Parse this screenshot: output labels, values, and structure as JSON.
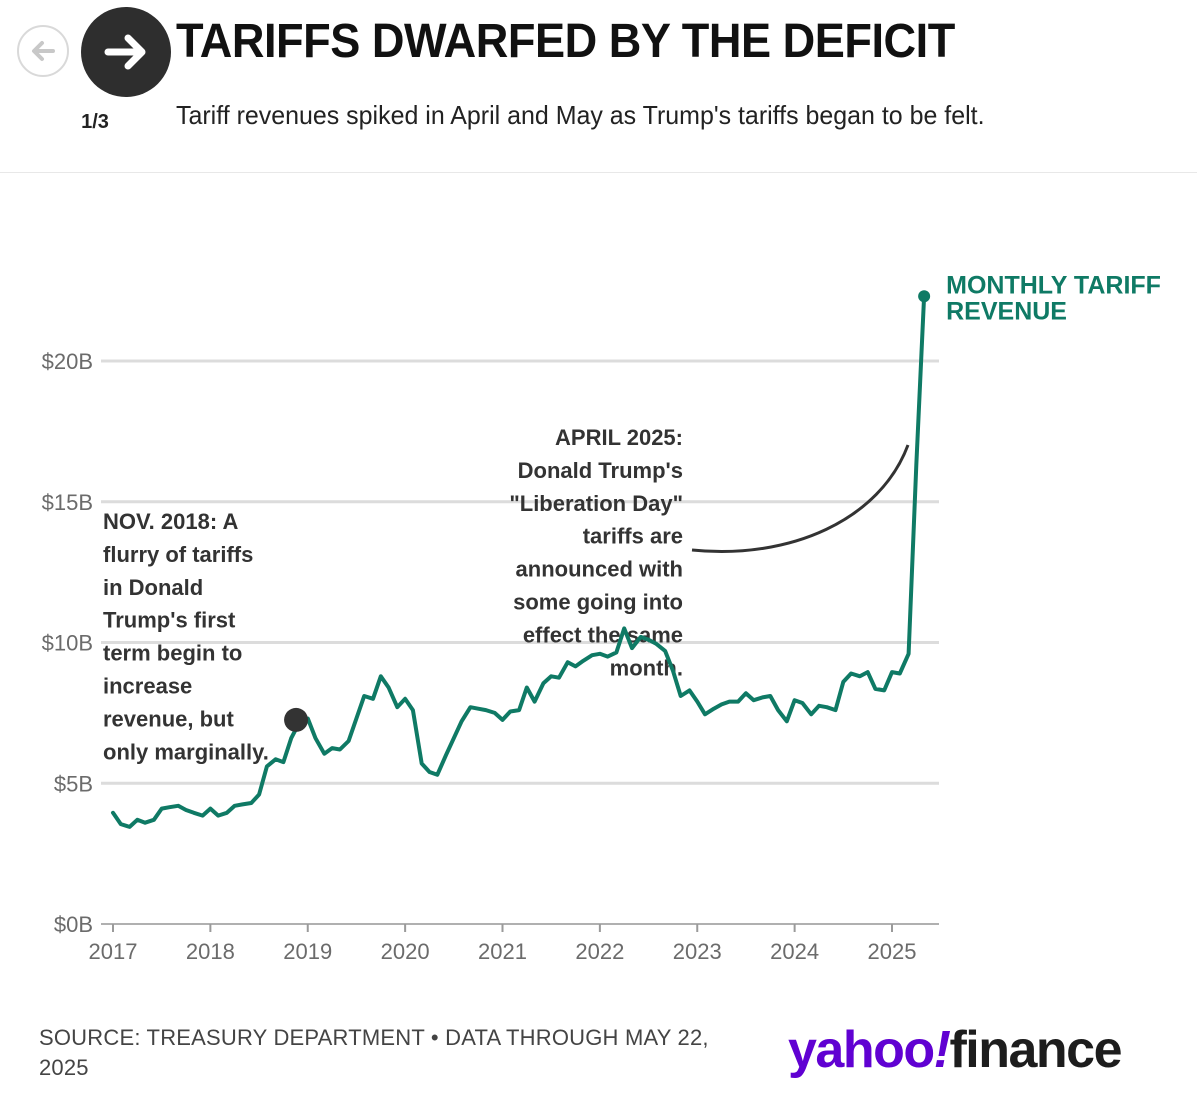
{
  "nav": {
    "page_count": "1/3",
    "prev_icon": "arrow-left-icon",
    "next_icon": "arrow-right-icon"
  },
  "header": {
    "title": "TARIFFS DWARFED BY THE DEFICIT",
    "subtitle": "Tariff revenues spiked in April and May as Trump's tariffs began to be felt."
  },
  "chart_data": {
    "type": "line",
    "series": [
      {
        "name": "MONTHLY TARIFF REVENUE",
        "color": "#0f7a65",
        "points": [
          [
            2017.0,
            3.95
          ],
          [
            2017.08,
            3.55
          ],
          [
            2017.17,
            3.45
          ],
          [
            2017.25,
            3.7
          ],
          [
            2017.33,
            3.6
          ],
          [
            2017.42,
            3.7
          ],
          [
            2017.5,
            4.1
          ],
          [
            2017.58,
            4.15
          ],
          [
            2017.67,
            4.2
          ],
          [
            2017.75,
            4.05
          ],
          [
            2017.83,
            3.95
          ],
          [
            2017.92,
            3.85
          ],
          [
            2018.0,
            4.1
          ],
          [
            2018.08,
            3.85
          ],
          [
            2018.17,
            3.95
          ],
          [
            2018.25,
            4.2
          ],
          [
            2018.33,
            4.25
          ],
          [
            2018.42,
            4.3
          ],
          [
            2018.5,
            4.6
          ],
          [
            2018.58,
            5.6
          ],
          [
            2018.67,
            5.85
          ],
          [
            2018.75,
            5.75
          ],
          [
            2018.83,
            6.6
          ],
          [
            2018.92,
            7.2
          ],
          [
            2019.0,
            7.3
          ],
          [
            2019.08,
            6.6
          ],
          [
            2019.17,
            6.05
          ],
          [
            2019.25,
            6.25
          ],
          [
            2019.33,
            6.2
          ],
          [
            2019.42,
            6.5
          ],
          [
            2019.5,
            7.3
          ],
          [
            2019.58,
            8.1
          ],
          [
            2019.67,
            8.0
          ],
          [
            2019.75,
            8.8
          ],
          [
            2019.83,
            8.4
          ],
          [
            2019.92,
            7.7
          ],
          [
            2020.0,
            8.0
          ],
          [
            2020.08,
            7.6
          ],
          [
            2020.17,
            5.7
          ],
          [
            2020.25,
            5.4
          ],
          [
            2020.33,
            5.3
          ],
          [
            2020.42,
            6.0
          ],
          [
            2020.5,
            6.6
          ],
          [
            2020.58,
            7.2
          ],
          [
            2020.67,
            7.7
          ],
          [
            2020.75,
            7.65
          ],
          [
            2020.83,
            7.6
          ],
          [
            2020.92,
            7.5
          ],
          [
            2021.0,
            7.25
          ],
          [
            2021.08,
            7.55
          ],
          [
            2021.17,
            7.6
          ],
          [
            2021.25,
            8.4
          ],
          [
            2021.33,
            7.9
          ],
          [
            2021.42,
            8.55
          ],
          [
            2021.5,
            8.8
          ],
          [
            2021.58,
            8.75
          ],
          [
            2021.67,
            9.3
          ],
          [
            2021.75,
            9.15
          ],
          [
            2021.83,
            9.35
          ],
          [
            2021.92,
            9.55
          ],
          [
            2022.0,
            9.6
          ],
          [
            2022.08,
            9.5
          ],
          [
            2022.17,
            9.65
          ],
          [
            2022.25,
            10.5
          ],
          [
            2022.33,
            9.8
          ],
          [
            2022.42,
            10.2
          ],
          [
            2022.5,
            10.1
          ],
          [
            2022.58,
            9.95
          ],
          [
            2022.67,
            9.7
          ],
          [
            2022.75,
            9.0
          ],
          [
            2022.83,
            8.1
          ],
          [
            2022.92,
            8.3
          ],
          [
            2023.0,
            7.9
          ],
          [
            2023.08,
            7.45
          ],
          [
            2023.17,
            7.65
          ],
          [
            2023.25,
            7.8
          ],
          [
            2023.33,
            7.9
          ],
          [
            2023.42,
            7.9
          ],
          [
            2023.5,
            8.2
          ],
          [
            2023.58,
            7.95
          ],
          [
            2023.67,
            8.05
          ],
          [
            2023.75,
            8.1
          ],
          [
            2023.83,
            7.6
          ],
          [
            2023.92,
            7.2
          ],
          [
            2024.0,
            7.95
          ],
          [
            2024.08,
            7.85
          ],
          [
            2024.17,
            7.45
          ],
          [
            2024.25,
            7.75
          ],
          [
            2024.33,
            7.7
          ],
          [
            2024.42,
            7.6
          ],
          [
            2024.5,
            8.6
          ],
          [
            2024.58,
            8.9
          ],
          [
            2024.67,
            8.8
          ],
          [
            2024.75,
            8.95
          ],
          [
            2024.83,
            8.35
          ],
          [
            2024.92,
            8.3
          ],
          [
            2025.0,
            8.95
          ],
          [
            2025.08,
            8.9
          ],
          [
            2025.17,
            9.6
          ],
          [
            2025.25,
            16.3
          ],
          [
            2025.33,
            22.3
          ]
        ]
      }
    ],
    "xticks": [
      "2017",
      "2018",
      "2019",
      "2020",
      "2021",
      "2022",
      "2023",
      "2024",
      "2025"
    ],
    "yticks": [
      {
        "value": 0,
        "label": "$0B"
      },
      {
        "value": 5,
        "label": "$5B"
      },
      {
        "value": 10,
        "label": "$10B"
      },
      {
        "value": 15,
        "label": "$15B"
      },
      {
        "value": 20,
        "label": "$20B"
      }
    ],
    "xlim": [
      2017.0,
      2025.5
    ],
    "ylim": [
      0,
      20
    ],
    "grid": true,
    "series_label_lines": [
      "MONTHLY TARIFF",
      "REVENUE"
    ],
    "annotations": [
      {
        "name": "nov-2018",
        "x": 2018.88,
        "y": 7.25,
        "lines": [
          "NOV. 2018: A",
          "flurry of tariffs",
          "in Donald",
          "Trump's first",
          "term begin to",
          "increase",
          "revenue, but",
          "only marginally."
        ]
      },
      {
        "name": "april-2025",
        "lines": [
          "APRIL 2025:",
          "Donald Trump's",
          "\"Liberation Day\"",
          "tariffs are",
          "announced with",
          "some going into",
          "effect the same",
          "month."
        ]
      }
    ]
  },
  "footer": {
    "source": "SOURCE: TREASURY DEPARTMENT • DATA THROUGH MAY 22, 2025",
    "logo": {
      "yahoo": "yahoo",
      "bang": "!",
      "finance": "finance"
    }
  }
}
